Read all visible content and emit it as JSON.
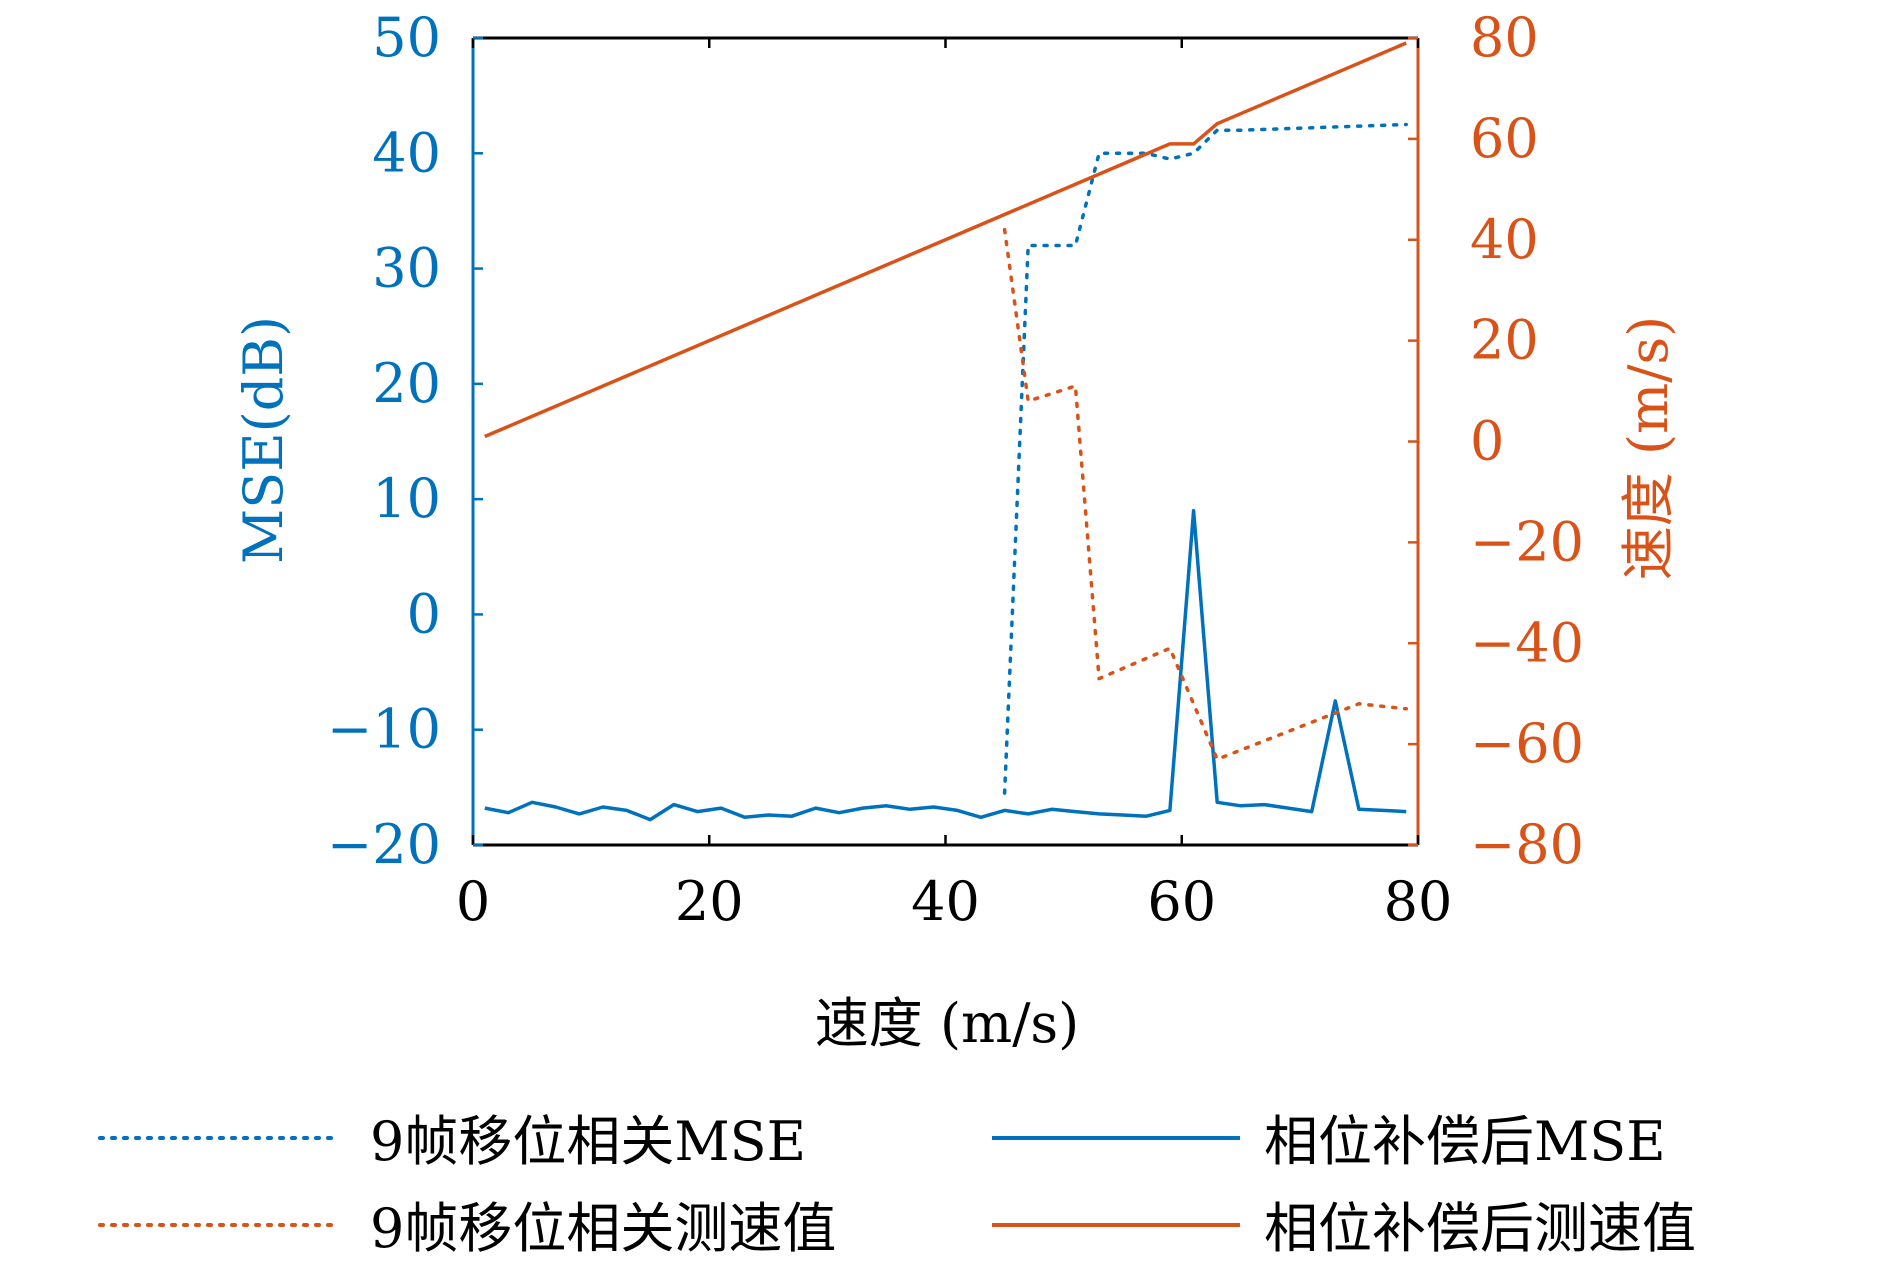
{
  "chart_data": {
    "type": "line",
    "title": "",
    "xlabel": "速度 (m/s)",
    "ylabel_left": "MSE(dB)",
    "ylabel_right": "速度 (m/s)",
    "xlim": [
      0,
      80
    ],
    "ylim_left": [
      -20,
      50
    ],
    "ylim_right": [
      -80,
      80
    ],
    "x_ticks": [
      0,
      20,
      40,
      60,
      80
    ],
    "y_ticks_left": [
      -20,
      -10,
      0,
      10,
      20,
      30,
      40,
      50
    ],
    "y_ticks_right": [
      -80,
      -60,
      -40,
      -20,
      0,
      20,
      40,
      60,
      80
    ],
    "grid": false,
    "legend_position": "bottom",
    "colors": {
      "blue": "#0072BD",
      "orange": "#D95319"
    },
    "series": [
      {
        "name": "9帧移位相关MSE",
        "axis": "left",
        "color": "#0072BD",
        "style": "dotted",
        "points": [
          [
            45,
            -15.5
          ],
          [
            47,
            32
          ],
          [
            51,
            32
          ],
          [
            53,
            40
          ],
          [
            57,
            40
          ],
          [
            59,
            39.5
          ],
          [
            61,
            40
          ],
          [
            63,
            42
          ],
          [
            65,
            42
          ],
          [
            79,
            42.5
          ]
        ]
      },
      {
        "name": "相位补偿后MSE",
        "axis": "left",
        "color": "#0072BD",
        "style": "solid",
        "points": [
          [
            1,
            -16.8
          ],
          [
            3,
            -17.2
          ],
          [
            5,
            -16.3
          ],
          [
            7,
            -16.7
          ],
          [
            9,
            -17.3
          ],
          [
            11,
            -16.7
          ],
          [
            13,
            -17.0
          ],
          [
            15,
            -17.8
          ],
          [
            17,
            -16.5
          ],
          [
            19,
            -17.1
          ],
          [
            21,
            -16.8
          ],
          [
            23,
            -17.6
          ],
          [
            25,
            -17.4
          ],
          [
            27,
            -17.5
          ],
          [
            29,
            -16.8
          ],
          [
            31,
            -17.2
          ],
          [
            33,
            -16.8
          ],
          [
            35,
            -16.6
          ],
          [
            37,
            -16.9
          ],
          [
            39,
            -16.7
          ],
          [
            41,
            -17.0
          ],
          [
            43,
            -17.6
          ],
          [
            45,
            -17.0
          ],
          [
            47,
            -17.3
          ],
          [
            49,
            -16.9
          ],
          [
            51,
            -17.1
          ],
          [
            53,
            -17.3
          ],
          [
            55,
            -17.4
          ],
          [
            57,
            -17.5
          ],
          [
            59,
            -17.0
          ],
          [
            61,
            9.0
          ],
          [
            63,
            -16.3
          ],
          [
            65,
            -16.6
          ],
          [
            67,
            -16.5
          ],
          [
            69,
            -16.8
          ],
          [
            71,
            -17.1
          ],
          [
            73,
            -7.5
          ],
          [
            75,
            -16.9
          ],
          [
            77,
            -17.0
          ],
          [
            79,
            -17.1
          ]
        ]
      },
      {
        "name": "9帧移位相关测速值",
        "axis": "right",
        "color": "#D95319",
        "style": "dotted",
        "points": [
          [
            45,
            42
          ],
          [
            47,
            8
          ],
          [
            51,
            11
          ],
          [
            53,
            -47
          ],
          [
            59,
            -41
          ],
          [
            63,
            -63
          ],
          [
            75,
            -52
          ],
          [
            79,
            -53
          ]
        ]
      },
      {
        "name": "相位补偿后测速值",
        "axis": "right",
        "color": "#D95319",
        "style": "solid",
        "points": [
          [
            1,
            1
          ],
          [
            59,
            59
          ],
          [
            61,
            59
          ],
          [
            63,
            63
          ],
          [
            75,
            75
          ],
          [
            79,
            79
          ]
        ]
      }
    ]
  }
}
